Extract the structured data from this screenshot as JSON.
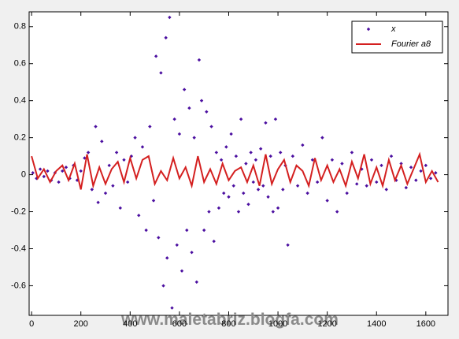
{
  "chart_data": {
    "type": "scatter",
    "annotation": "www.maletabriz.blogfa.com",
    "xlim": [
      -10,
      1690
    ],
    "ylim": [
      -0.76,
      0.88
    ],
    "xticks": [
      0,
      200,
      400,
      600,
      800,
      1000,
      1200,
      1400,
      1600
    ],
    "yticks": [
      -0.6,
      -0.4,
      -0.2,
      0,
      0.2,
      0.4,
      0.6,
      0.8
    ],
    "legend": "upper right",
    "series": [
      {
        "name": "x",
        "type": "scatter",
        "color": "#4b0fa0",
        "x": [
          5,
          20,
          35,
          50,
          65,
          80,
          95,
          110,
          125,
          140,
          155,
          170,
          185,
          200,
          215,
          230,
          245,
          260,
          270,
          285,
          300,
          315,
          330,
          345,
          360,
          375,
          390,
          405,
          420,
          435,
          450,
          465,
          480,
          495,
          505,
          515,
          525,
          535,
          545,
          550,
          560,
          570,
          580,
          590,
          600,
          610,
          620,
          630,
          640,
          650,
          660,
          670,
          680,
          690,
          700,
          710,
          720,
          730,
          740,
          750,
          760,
          770,
          780,
          790,
          800,
          810,
          820,
          830,
          840,
          850,
          860,
          870,
          880,
          890,
          900,
          910,
          920,
          930,
          940,
          950,
          960,
          970,
          980,
          990,
          1000,
          1010,
          1020,
          1030,
          1040,
          1060,
          1080,
          1100,
          1120,
          1140,
          1160,
          1180,
          1200,
          1220,
          1240,
          1260,
          1280,
          1300,
          1320,
          1340,
          1360,
          1380,
          1400,
          1420,
          1440,
          1460,
          1480,
          1500,
          1520,
          1540,
          1560,
          1580,
          1600,
          1620,
          1640
        ],
        "values": [
          0.01,
          -0.02,
          0.03,
          -0.01,
          0.02,
          -0.03,
          0.01,
          -0.04,
          0.02,
          0.04,
          -0.02,
          0.05,
          -0.03,
          0.02,
          0.09,
          0.12,
          -0.08,
          0.26,
          -0.15,
          0.18,
          -0.1,
          0.05,
          -0.06,
          0.12,
          -0.18,
          0.08,
          -0.04,
          0.1,
          0.2,
          -0.22,
          0.15,
          -0.3,
          0.26,
          -0.14,
          0.64,
          -0.34,
          0.55,
          -0.6,
          0.74,
          -0.45,
          0.85,
          -0.72,
          0.3,
          -0.38,
          0.22,
          -0.52,
          0.46,
          -0.3,
          0.36,
          -0.42,
          0.2,
          -0.58,
          0.62,
          0.4,
          -0.3,
          0.34,
          -0.2,
          0.26,
          -0.36,
          0.12,
          -0.18,
          0.08,
          -0.1,
          0.15,
          -0.12,
          0.22,
          -0.06,
          0.1,
          -0.2,
          0.3,
          -0.1,
          0.06,
          -0.16,
          0.12,
          -0.04,
          0.08,
          -0.08,
          0.14,
          -0.06,
          0.28,
          -0.12,
          0.1,
          -0.2,
          0.3,
          -0.18,
          0.12,
          -0.08,
          0.05,
          -0.38,
          0.1,
          -0.06,
          0.16,
          -0.1,
          0.08,
          -0.04,
          0.2,
          -0.14,
          0.08,
          -0.2,
          0.06,
          -0.1,
          0.12,
          -0.05,
          0.03,
          -0.06,
          0.08,
          -0.04,
          0.05,
          -0.08,
          0.1,
          -0.03,
          0.06,
          -0.07,
          0.04,
          -0.03,
          0.02,
          0.05,
          -0.02,
          0.01
        ]
      },
      {
        "name": "Fourier a8",
        "type": "line",
        "color": "#d42020",
        "x": [
          0,
          25,
          50,
          75,
          100,
          125,
          150,
          175,
          200,
          225,
          250,
          275,
          300,
          325,
          350,
          375,
          400,
          425,
          450,
          475,
          500,
          525,
          550,
          575,
          600,
          625,
          650,
          675,
          700,
          725,
          750,
          775,
          800,
          825,
          850,
          875,
          900,
          925,
          950,
          975,
          1000,
          1025,
          1050,
          1075,
          1100,
          1125,
          1150,
          1175,
          1200,
          1225,
          1250,
          1275,
          1300,
          1325,
          1350,
          1375,
          1400,
          1425,
          1450,
          1475,
          1500,
          1525,
          1550,
          1575,
          1600,
          1625,
          1650
        ],
        "values": [
          0.1,
          -0.02,
          0.03,
          -0.04,
          0.02,
          0.05,
          -0.03,
          0.06,
          -0.08,
          0.11,
          -0.06,
          0.04,
          -0.05,
          0.03,
          0.07,
          -0.04,
          0.09,
          -0.02,
          0.08,
          0.1,
          -0.05,
          0.02,
          -0.03,
          0.09,
          -0.02,
          0.04,
          -0.06,
          0.1,
          -0.04,
          0.03,
          -0.05,
          0.06,
          -0.03,
          0.02,
          0.04,
          -0.04,
          0.05,
          -0.06,
          0.11,
          -0.05,
          0.03,
          0.08,
          -0.04,
          0.05,
          0.02,
          -0.06,
          0.09,
          -0.03,
          0.05,
          -0.04,
          0.03,
          -0.06,
          0.07,
          -0.02,
          0.11,
          -0.05,
          0.04,
          -0.06,
          0.08,
          -0.03,
          0.05,
          -0.05,
          0.03,
          0.11,
          -0.04,
          0.02,
          -0.04
        ]
      }
    ]
  }
}
